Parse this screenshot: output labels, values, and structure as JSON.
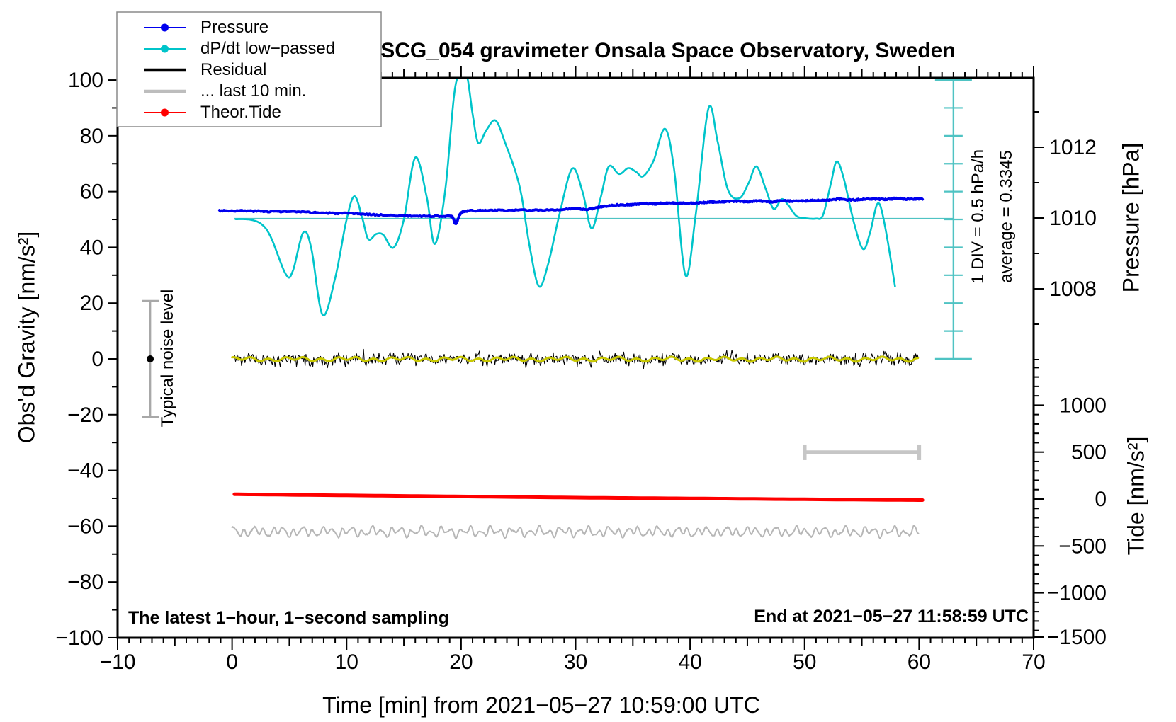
{
  "title": "SCG_054 gravimeter Onsala Space Observatory, Sweden",
  "annotations": {
    "sampling_note": "The latest 1−hour, 1−second sampling",
    "end_note": "End at 2021−05−27 11:58:59 UTC",
    "noise_label": "Typical noise level",
    "div_scale_label": "1 DIV = 0.5 hPa/h",
    "average_label": "average = 0.3345"
  },
  "legend": {
    "items": [
      {
        "label": "Pressure",
        "color": "#0000EE",
        "style": "thin-dot"
      },
      {
        "label": "dP/dt low−passed",
        "color": "#00C4CA",
        "style": "thin-dot"
      },
      {
        "label": "Residual",
        "color": "#000000",
        "style": "thick"
      },
      {
        "label": "... last 10 min.",
        "color": "#BDBDBD",
        "style": "thick"
      },
      {
        "label": "Theor.Tide",
        "color": "#FF0000",
        "style": "thin-dot"
      }
    ]
  },
  "axes": {
    "x": {
      "label": "Time [min] from 2021−05−27 10:59:00 UTC",
      "range": [
        -10,
        70
      ],
      "minor_step": 1,
      "medium_step": 5,
      "major_step": 10,
      "tick_labels": [
        {
          "t": -10,
          "label": "−10"
        },
        {
          "t": 0,
          "label": "0"
        },
        {
          "t": 10,
          "label": "10"
        },
        {
          "t": 20,
          "label": "20"
        },
        {
          "t": 30,
          "label": "30"
        },
        {
          "t": 40,
          "label": "40"
        },
        {
          "t": 50,
          "label": "50"
        },
        {
          "t": 60,
          "label": "60"
        },
        {
          "t": 70,
          "label": "70"
        }
      ]
    },
    "y_left": {
      "label": "Obs'd Gravity [nm/s²]",
      "range": [
        -100,
        100
      ],
      "major_step": 20,
      "minor_step": 10,
      "tick_labels": [
        {
          "g": 100,
          "label": "100"
        },
        {
          "g": 80,
          "label": "80"
        },
        {
          "g": 60,
          "label": "60"
        },
        {
          "g": 40,
          "label": "40"
        },
        {
          "g": 20,
          "label": "20"
        },
        {
          "g": 0,
          "label": "0"
        },
        {
          "g": -20,
          "label": "−20"
        },
        {
          "g": -40,
          "label": "−40"
        },
        {
          "g": -60,
          "label": "−60"
        },
        {
          "g": -80,
          "label": "−80"
        },
        {
          "g": -100,
          "label": "−100"
        }
      ]
    },
    "y_right_pressure": {
      "label": "Pressure [hPa]",
      "minor_ticks": [
        1006,
        1007,
        1009,
        1011,
        1013
      ],
      "tick_labels": [
        {
          "p": 1012,
          "label": "1012"
        },
        {
          "p": 1010,
          "label": "1010"
        },
        {
          "p": 1008,
          "label": "1008"
        }
      ]
    },
    "y_right_tide": {
      "label": "Tide [nm/s²]",
      "minor_step": 100,
      "minor_range": [
        -1400,
        1400
      ],
      "tick_labels": [
        {
          "v": 1000,
          "label": "1000"
        },
        {
          "v": 500,
          "label": "500"
        },
        {
          "v": 0,
          "label": "0"
        },
        {
          "v": -500,
          "label": "−500"
        },
        {
          "v": -1000,
          "label": "−1000"
        },
        {
          "v": -1500,
          "label": "−1500"
        }
      ]
    }
  },
  "chart_data": {
    "type": "line",
    "x_unit": "minutes from 2021-05-27 10:59:00 UTC",
    "gravity_axis_range": [
      -100,
      100
    ],
    "pressure_axis": {
      "hPa_1010_at_gravity": 50,
      "hPa_per_gravity_unit": 0.02
    },
    "tide_axis": {
      "zero_at_gravity": -50.3,
      "units_per_gravity": 7.54
    },
    "series": [
      {
        "name": "last10_residual",
        "legend": "... last 10 min.",
        "color": "#B6B6B6",
        "width": 2,
        "generator": {
          "kind": "osc",
          "t_range": [
            0,
            60
          ],
          "dt": 0.06,
          "center": -62,
          "components": [
            [
              1.15,
              7.3,
              0.3
            ],
            [
              0.75,
              3.05,
              1.5
            ],
            [
              0.45,
              11.7,
              2.1
            ]
          ],
          "noise": 0.4,
          "seed": 5
        }
      },
      {
        "name": "theor_tide",
        "legend": "Theor.Tide",
        "color": "#FF0000",
        "width": 5,
        "points": [
          [
            0.2,
            -48.55
          ],
          [
            10,
            -48.95
          ],
          [
            20,
            -49.35
          ],
          [
            30,
            -49.75
          ],
          [
            40,
            -50.05
          ],
          [
            50,
            -50.35
          ],
          [
            60.3,
            -50.65
          ]
        ]
      },
      {
        "name": "residual",
        "legend": "Residual",
        "color": "#000000",
        "width": 1.1,
        "generator": {
          "kind": "noise",
          "t_range": [
            0,
            60
          ],
          "dt": 0.075,
          "sigma": 1.05,
          "spike_prob": 0.02,
          "seed": 11
        }
      },
      {
        "name": "residual_lowpass",
        "legend": "",
        "color": "#C9C900",
        "width": 3,
        "generator": {
          "kind": "osc",
          "t_range": [
            0,
            60
          ],
          "dt": 0.1,
          "center": -0.1,
          "components": [
            [
              0.55,
              4.1,
              1.2
            ],
            [
              0.35,
              1.35,
              0.4
            ]
          ],
          "noise": 0,
          "seed": 2
        }
      },
      {
        "name": "dpdt_lowpassed",
        "legend": "dP/dt low−passed",
        "color": "#00C4CA",
        "width": 2.6,
        "clamp_gravity_max": 100.6,
        "points": [
          [
            0.3,
            50.1
          ],
          [
            1.6,
            49.9
          ],
          [
            2.6,
            48.2
          ],
          [
            3.4,
            43.5
          ],
          [
            4.7,
            30.3
          ],
          [
            5.3,
            31.5
          ],
          [
            6.2,
            45.2
          ],
          [
            6.9,
            40.0
          ],
          [
            7.9,
            15.8
          ],
          [
            9.0,
            29.0
          ],
          [
            10.0,
            50.0
          ],
          [
            10.7,
            58.3
          ],
          [
            11.4,
            50.0
          ],
          [
            11.9,
            42.9
          ],
          [
            12.6,
            44.8
          ],
          [
            13.2,
            44.5
          ],
          [
            14.1,
            39.9
          ],
          [
            15.0,
            50.0
          ],
          [
            16.0,
            72.2
          ],
          [
            17.0,
            58.0
          ],
          [
            17.7,
            41.2
          ],
          [
            18.6,
            60.0
          ],
          [
            19.4,
            95.0
          ],
          [
            19.9,
            101.5
          ],
          [
            20.5,
            101.5
          ],
          [
            21.0,
            88.0
          ],
          [
            21.5,
            77.4
          ],
          [
            22.2,
            82.0
          ],
          [
            23.0,
            85.5
          ],
          [
            23.8,
            78.0
          ],
          [
            25.1,
            62.0
          ],
          [
            26.0,
            40.0
          ],
          [
            26.8,
            26.0
          ],
          [
            27.6,
            34.0
          ],
          [
            28.6,
            52.0
          ],
          [
            29.7,
            68.2
          ],
          [
            30.6,
            60.0
          ],
          [
            31.4,
            46.8
          ],
          [
            32.2,
            58.0
          ],
          [
            32.9,
            69.0
          ],
          [
            33.8,
            66.3
          ],
          [
            34.6,
            68.4
          ],
          [
            35.3,
            67.0
          ],
          [
            35.9,
            65.5
          ],
          [
            36.8,
            71.0
          ],
          [
            37.8,
            82.5
          ],
          [
            38.6,
            68.0
          ],
          [
            39.6,
            29.9
          ],
          [
            40.5,
            52.0
          ],
          [
            41.6,
            89.8
          ],
          [
            42.4,
            78.0
          ],
          [
            43.3,
            60.7
          ],
          [
            44.3,
            57.6
          ],
          [
            45.1,
            63.0
          ],
          [
            45.8,
            69.0
          ],
          [
            46.6,
            61.0
          ],
          [
            47.3,
            53.8
          ],
          [
            48.0,
            57.3
          ],
          [
            48.6,
            55.0
          ],
          [
            49.3,
            51.2
          ],
          [
            50.2,
            50.4
          ],
          [
            51.0,
            50.3
          ],
          [
            51.6,
            51.5
          ],
          [
            52.3,
            63.0
          ],
          [
            52.8,
            70.8
          ],
          [
            53.4,
            65.0
          ],
          [
            54.3,
            49.0
          ],
          [
            55.1,
            39.4
          ],
          [
            55.7,
            45.0
          ],
          [
            56.4,
            55.8
          ],
          [
            57.0,
            48.0
          ],
          [
            57.9,
            26.0
          ]
        ]
      },
      {
        "name": "pressure",
        "legend": "Pressure",
        "color": "#0000EE",
        "width": 3.8,
        "jitter": 0.25,
        "seed": 3,
        "points": [
          [
            -1.1,
            53.2
          ],
          [
            1,
            53.1
          ],
          [
            3,
            52.9
          ],
          [
            5,
            52.8
          ],
          [
            7,
            52.5
          ],
          [
            9,
            52.2
          ],
          [
            11,
            52.0
          ],
          [
            13,
            51.6
          ],
          [
            15,
            51.3
          ],
          [
            17,
            51.2
          ],
          [
            18.5,
            51.2
          ],
          [
            19.2,
            51.0
          ],
          [
            19.55,
            48.4
          ],
          [
            19.9,
            51.8
          ],
          [
            20.5,
            53.0
          ],
          [
            22,
            53.2
          ],
          [
            24,
            53.3
          ],
          [
            26,
            53.3
          ],
          [
            28,
            53.5
          ],
          [
            30,
            53.8
          ],
          [
            31,
            53.6
          ],
          [
            32,
            54.4
          ],
          [
            33,
            55.0
          ],
          [
            34,
            55.3
          ],
          [
            35,
            55.3
          ],
          [
            36,
            55.7
          ],
          [
            37,
            55.6
          ],
          [
            38,
            55.9
          ],
          [
            39,
            55.8
          ],
          [
            40,
            55.8
          ],
          [
            41,
            56.0
          ],
          [
            42,
            56.3
          ],
          [
            43,
            56.3
          ],
          [
            44,
            56.6
          ],
          [
            45,
            56.4
          ],
          [
            46,
            56.6
          ],
          [
            47,
            56.3
          ],
          [
            48,
            56.7
          ],
          [
            49,
            56.6
          ],
          [
            50,
            56.7
          ],
          [
            51,
            56.8
          ],
          [
            52,
            56.9
          ],
          [
            53,
            57.3
          ],
          [
            54,
            57.0
          ],
          [
            55,
            57.2
          ],
          [
            56,
            57.4
          ],
          [
            57,
            57.2
          ],
          [
            58,
            57.5
          ],
          [
            59,
            57.3
          ],
          [
            60.3,
            57.4
          ]
        ]
      }
    ],
    "reference_line": {
      "gravity": 50.3,
      "t0": 0.2,
      "t1": 63,
      "color": "#4FC3C3",
      "width": 2
    },
    "div_scale_bar": {
      "t": 63,
      "gravity_from": 0,
      "gravity_to": 100.6,
      "divisions": 10,
      "div_value": "0.5 hPa/h",
      "average": 0.3345,
      "color": "#4FC3C3"
    },
    "noise_errorbar": {
      "t": -7.15,
      "gravity_center": 0,
      "gravity_half_span": 20.8,
      "color": "#A8A8A8"
    },
    "last10_window_bar": {
      "t0": 50,
      "t1": 60,
      "gravity": -33.5,
      "color": "#C6C6C6"
    }
  }
}
